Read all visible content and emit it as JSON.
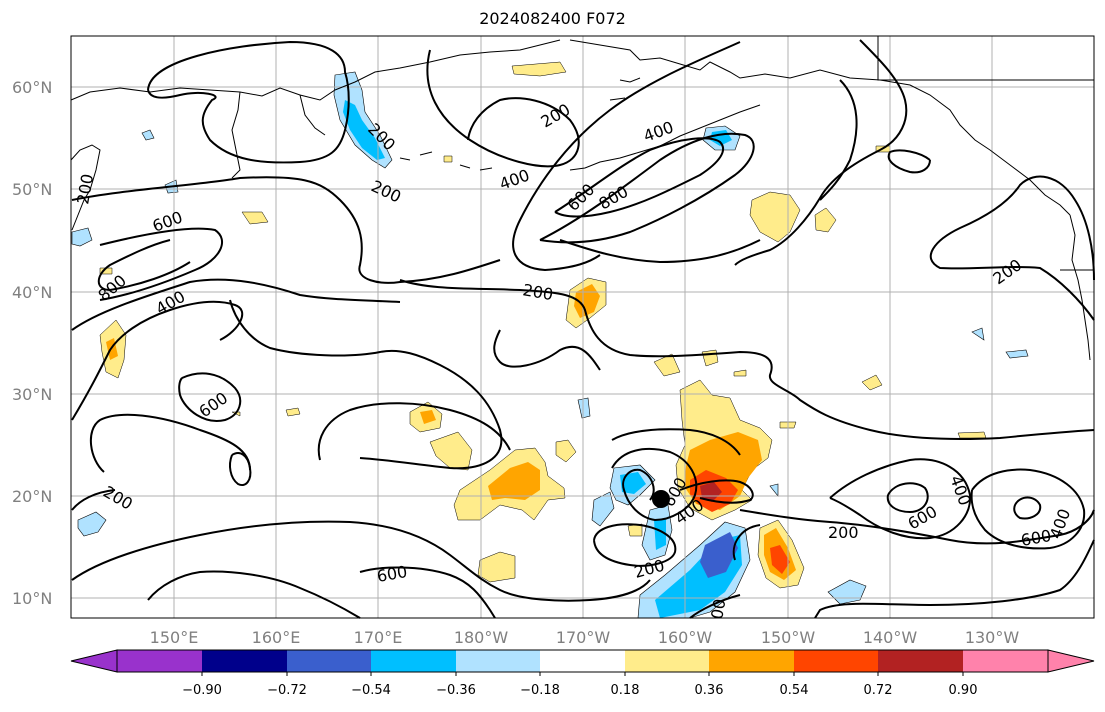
{
  "title": "2024082400 F072",
  "lat_labels": [
    "60°N",
    "50°N",
    "40°N",
    "30°N",
    "20°N",
    "10°N"
  ],
  "lon_labels": [
    "150°E",
    "160°E",
    "170°E",
    "180°W",
    "170°W",
    "160°W",
    "150°W",
    "140°W",
    "130°W"
  ],
  "colorbar": {
    "labels": [
      "−0.90",
      "−0.72",
      "−0.54",
      "−0.36",
      "−0.18",
      "0.18",
      "0.36",
      "0.54",
      "0.72",
      "0.90"
    ],
    "colors": [
      "#9932cc",
      "#00008b",
      "#3a5fcd",
      "#00bfff",
      "#b0e2ff",
      "#ffffff",
      "#ffec8b",
      "#ffa500",
      "#ff4500",
      "#b22222",
      "#ff82ab"
    ]
  },
  "contour_labels": [
    "200",
    "200",
    "200",
    "200",
    "200",
    "200",
    "200",
    "200",
    "200",
    "400",
    "400",
    "400",
    "400",
    "400",
    "600",
    "600",
    "600",
    "600",
    "600",
    "600",
    "600",
    "800",
    "800",
    "00"
  ],
  "colors": {
    "contour": "#000000",
    "coast": "#000000",
    "grid": "#b0b0b0"
  }
}
